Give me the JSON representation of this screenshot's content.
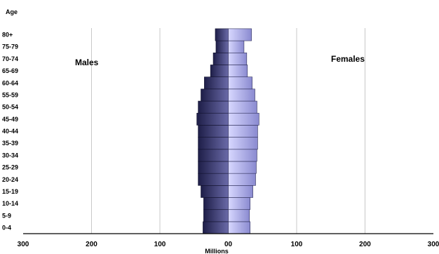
{
  "chart_data": {
    "type": "bar",
    "orientation": "population-pyramid",
    "ylabel": "Age",
    "xlabel": "Millions",
    "xlim": [
      -300,
      300
    ],
    "x_ticks": [
      {
        "value": -300,
        "label": "300"
      },
      {
        "value": -200,
        "label": "200"
      },
      {
        "value": -100,
        "label": "100"
      },
      {
        "value": 0,
        "label": "00"
      },
      {
        "value": 100,
        "label": "100"
      },
      {
        "value": 200,
        "label": "200"
      },
      {
        "value": 300,
        "label": "300"
      }
    ],
    "grid": true,
    "categories": [
      "0-4",
      "5-9",
      "10-14",
      "15-19",
      "20-24",
      "25-29",
      "30-34",
      "35-39",
      "40-44",
      "45-49",
      "50-54",
      "55-59",
      "60-64",
      "65-69",
      "70-74",
      "75-79",
      "80+"
    ],
    "category_labels": [
      "0-4",
      "5-9",
      "10-14",
      "15-19",
      "20-24",
      "25-29",
      "30-34",
      "35-39",
      "40-44",
      "45-49",
      "50-54",
      "55-59",
      "60-64",
      "65-69",
      "70-74",
      "75-79",
      "80+"
    ],
    "series": [
      {
        "name": "Males",
        "side": "left",
        "color": "#3e3e78",
        "values": [
          37,
          36,
          36,
          40,
          44,
          44,
          44,
          44,
          44,
          46,
          44,
          40,
          35,
          26,
          22,
          18,
          19
        ]
      },
      {
        "name": "Females",
        "side": "right",
        "color": "#b8b8ee",
        "values": [
          32,
          31,
          32,
          36,
          40,
          41,
          42,
          43,
          43,
          45,
          42,
          39,
          35,
          28,
          27,
          23,
          34
        ]
      }
    ],
    "annotations": [
      "Males",
      "Females"
    ]
  }
}
